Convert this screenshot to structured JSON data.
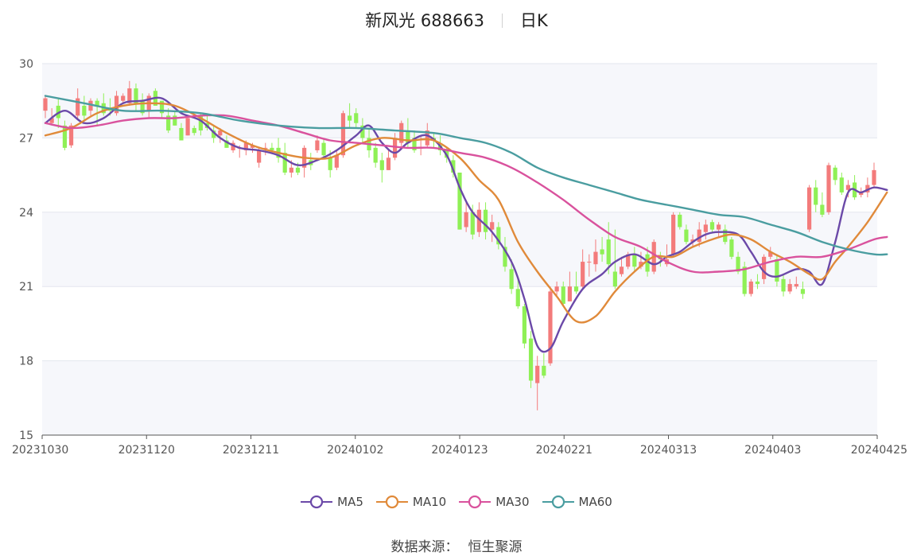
{
  "header": {
    "name": "新风光 688663",
    "period": "日K"
  },
  "source": {
    "label": "数据来源：",
    "value": "恒生聚源"
  },
  "chart_data": {
    "type": "candlestick",
    "ylim": [
      15,
      30
    ],
    "y_ticks": [
      "15",
      "18",
      "21",
      "24",
      "27",
      "30"
    ],
    "x_ticks": [
      "20231030",
      "20231120",
      "20231211",
      "20240102",
      "20240123",
      "20240221",
      "20240313",
      "20240403",
      "20240425"
    ],
    "up_color": "#f37b7b",
    "down_color": "#8ff056",
    "candles": [
      [
        28.1,
        28.6,
        27.8,
        28.7
      ],
      [
        27.6,
        27.8,
        27.5,
        28.2
      ],
      [
        28.3,
        27.8,
        27.4,
        28.6
      ],
      [
        27.5,
        26.6,
        26.5,
        27.7
      ],
      [
        26.7,
        27.5,
        26.6,
        27.6
      ],
      [
        27.9,
        28.6,
        27.8,
        29.0
      ],
      [
        28.3,
        27.9,
        27.7,
        28.7
      ],
      [
        28.1,
        28.5,
        27.9,
        28.6
      ],
      [
        28.5,
        28.3,
        27.5,
        28.6
      ],
      [
        28.4,
        28.0,
        27.9,
        28.8
      ],
      [
        28.2,
        28.1,
        27.9,
        28.6
      ],
      [
        28.0,
        28.7,
        27.9,
        28.9
      ],
      [
        28.5,
        28.7,
        28.4,
        28.8
      ],
      [
        28.4,
        29.0,
        28.3,
        29.3
      ],
      [
        29.0,
        28.4,
        28.1,
        29.2
      ],
      [
        28.5,
        28.0,
        27.9,
        28.8
      ],
      [
        28.1,
        28.7,
        27.8,
        28.8
      ],
      [
        28.9,
        28.3,
        28.3,
        29.0
      ],
      [
        28.5,
        28.0,
        27.8,
        28.5
      ],
      [
        27.9,
        27.3,
        27.2,
        28.2
      ],
      [
        27.9,
        27.5,
        27.5,
        28.1
      ],
      [
        27.4,
        26.9,
        26.9,
        27.6
      ],
      [
        27.1,
        27.8,
        27.1,
        27.9
      ],
      [
        27.4,
        27.2,
        27.1,
        27.5
      ],
      [
        27.9,
        27.3,
        27.1,
        28.0
      ],
      [
        27.6,
        27.4,
        27.3,
        27.9
      ],
      [
        27.3,
        27.0,
        26.8,
        27.5
      ],
      [
        27.1,
        27.3,
        26.8,
        27.4
      ],
      [
        26.9,
        26.6,
        26.6,
        27.1
      ],
      [
        26.5,
        26.8,
        26.4,
        26.9
      ],
      [
        26.6,
        26.6,
        26.2,
        26.7
      ],
      [
        26.5,
        26.8,
        26.3,
        26.9
      ],
      [
        26.6,
        26.7,
        26.4,
        26.8
      ],
      [
        26.0,
        26.5,
        25.8,
        26.6
      ],
      [
        26.6,
        26.6,
        26.3,
        26.8
      ],
      [
        26.6,
        26.5,
        26.4,
        26.8
      ],
      [
        26.6,
        26.2,
        26.0,
        27.0
      ],
      [
        26.4,
        25.6,
        25.5,
        26.8
      ],
      [
        25.6,
        25.8,
        25.4,
        26.1
      ],
      [
        25.8,
        25.6,
        25.5,
        26.0
      ],
      [
        25.8,
        26.6,
        25.4,
        26.7
      ],
      [
        26.1,
        25.9,
        25.7,
        26.4
      ],
      [
        26.5,
        26.9,
        26.4,
        27.1
      ],
      [
        26.8,
        26.3,
        26.2,
        27.0
      ],
      [
        26.2,
        25.7,
        25.4,
        26.5
      ],
      [
        25.8,
        26.3,
        25.7,
        26.5
      ],
      [
        26.3,
        28.0,
        26.2,
        28.1
      ],
      [
        27.9,
        27.7,
        27.4,
        28.4
      ],
      [
        28.0,
        27.6,
        27.4,
        28.2
      ],
      [
        27.5,
        27.0,
        26.8,
        27.8
      ],
      [
        27.0,
        26.5,
        26.2,
        27.4
      ],
      [
        26.6,
        26.0,
        25.8,
        26.8
      ],
      [
        26.1,
        25.7,
        25.2,
        26.4
      ],
      [
        25.7,
        26.2,
        25.7,
        26.5
      ],
      [
        26.2,
        27.0,
        26.1,
        27.2
      ],
      [
        26.8,
        27.6,
        26.6,
        27.7
      ],
      [
        27.3,
        26.8,
        26.6,
        27.8
      ],
      [
        27.0,
        26.5,
        26.4,
        27.3
      ],
      [
        26.6,
        26.6,
        26.3,
        27.1
      ],
      [
        26.7,
        27.3,
        26.6,
        27.6
      ],
      [
        27.0,
        26.9,
        26.6,
        27.2
      ],
      [
        26.7,
        26.5,
        26.3,
        27.1
      ],
      [
        26.5,
        26.2,
        26.0,
        26.6
      ],
      [
        26.1,
        25.6,
        25.4,
        26.3
      ],
      [
        25.6,
        23.3,
        23.3,
        25.6
      ],
      [
        23.4,
        24.0,
        23.2,
        24.5
      ],
      [
        24.0,
        23.1,
        22.9,
        24.3
      ],
      [
        23.2,
        24.1,
        23.0,
        24.4
      ],
      [
        24.1,
        23.2,
        22.9,
        24.4
      ],
      [
        23.3,
        23.6,
        22.8,
        23.9
      ],
      [
        23.4,
        22.7,
        22.5,
        23.6
      ],
      [
        22.6,
        21.8,
        21.6,
        23.0
      ],
      [
        21.7,
        20.9,
        20.7,
        22.1
      ],
      [
        20.9,
        20.2,
        20.1,
        21.4
      ],
      [
        20.2,
        18.7,
        18.5,
        20.3
      ],
      [
        18.9,
        17.2,
        16.9,
        19.2
      ],
      [
        17.1,
        17.8,
        16.0,
        18.2
      ],
      [
        17.8,
        17.4,
        17.3,
        18.3
      ],
      [
        17.9,
        20.8,
        17.8,
        21.0
      ],
      [
        20.8,
        21.0,
        20.6,
        21.2
      ],
      [
        21.0,
        20.3,
        20.2,
        21.2
      ],
      [
        20.4,
        21.0,
        20.4,
        21.6
      ],
      [
        21.0,
        20.8,
        20.7,
        21.6
      ],
      [
        21.0,
        22.0,
        20.9,
        22.5
      ],
      [
        22.0,
        22.0,
        21.4,
        22.3
      ],
      [
        21.9,
        22.4,
        21.6,
        22.9
      ],
      [
        22.5,
        22.3,
        22.0,
        23.0
      ],
      [
        22.9,
        21.9,
        21.5,
        23.6
      ],
      [
        21.6,
        21.0,
        20.9,
        23.3
      ],
      [
        21.5,
        21.8,
        21.4,
        22.2
      ],
      [
        21.8,
        22.3,
        21.7,
        22.4
      ],
      [
        22.3,
        21.8,
        21.6,
        22.6
      ],
      [
        21.8,
        22.0,
        21.7,
        22.4
      ],
      [
        22.3,
        21.6,
        21.4,
        22.6
      ],
      [
        21.6,
        22.8,
        21.5,
        22.9
      ],
      [
        22.2,
        22.1,
        21.8,
        22.4
      ],
      [
        21.9,
        22.1,
        21.8,
        22.7
      ],
      [
        22.3,
        23.9,
        22.2,
        24.0
      ],
      [
        23.9,
        23.4,
        23.3,
        24.0
      ],
      [
        23.3,
        22.8,
        22.7,
        23.5
      ],
      [
        22.8,
        22.9,
        22.6,
        23.1
      ],
      [
        22.8,
        23.3,
        22.6,
        23.6
      ],
      [
        23.2,
        23.5,
        22.9,
        23.7
      ],
      [
        23.6,
        23.3,
        23.2,
        23.7
      ],
      [
        23.3,
        23.5,
        23.0,
        23.6
      ],
      [
        23.3,
        22.8,
        22.7,
        23.5
      ],
      [
        22.9,
        22.2,
        22.1,
        23.0
      ],
      [
        22.2,
        21.6,
        21.5,
        22.4
      ],
      [
        21.8,
        20.7,
        20.6,
        22.0
      ],
      [
        20.7,
        21.2,
        20.6,
        21.3
      ],
      [
        21.2,
        21.1,
        20.9,
        21.5
      ],
      [
        21.3,
        22.2,
        21.1,
        22.3
      ],
      [
        22.2,
        22.4,
        22.1,
        22.6
      ],
      [
        22.1,
        21.2,
        21.0,
        22.3
      ],
      [
        21.3,
        20.8,
        20.6,
        21.5
      ],
      [
        20.8,
        21.1,
        20.7,
        21.3
      ],
      [
        21.0,
        21.1,
        20.9,
        21.4
      ],
      [
        20.9,
        20.7,
        20.5,
        21.2
      ],
      [
        23.3,
        25.0,
        23.2,
        25.1
      ],
      [
        25.0,
        24.3,
        24.0,
        25.3
      ],
      [
        24.3,
        23.9,
        23.8,
        24.8
      ],
      [
        24.0,
        25.9,
        23.9,
        26.0
      ],
      [
        25.8,
        25.3,
        25.1,
        25.9
      ],
      [
        25.4,
        24.8,
        24.7,
        25.6
      ],
      [
        24.9,
        25.1,
        24.6,
        25.3
      ],
      [
        25.2,
        24.6,
        24.5,
        25.5
      ],
      [
        24.7,
        24.8,
        24.6,
        25.0
      ],
      [
        24.8,
        25.1,
        24.6,
        25.4
      ],
      [
        25.1,
        25.7,
        25.0,
        26.0
      ]
    ],
    "series": [
      {
        "name": "MA5",
        "color": "#6b49a8",
        "points": [
          [
            0,
            27.6
          ],
          [
            3,
            28.1
          ],
          [
            6,
            27.6
          ],
          [
            9,
            27.8
          ],
          [
            12,
            28.4
          ],
          [
            15,
            28.5
          ],
          [
            18,
            28.6
          ],
          [
            21,
            28.0
          ],
          [
            24,
            27.7
          ],
          [
            27,
            27.0
          ],
          [
            30,
            26.6
          ],
          [
            33,
            26.5
          ],
          [
            36,
            26.3
          ],
          [
            39,
            25.9
          ],
          [
            42,
            26.1
          ],
          [
            45,
            26.5
          ],
          [
            48,
            27.1
          ],
          [
            50,
            27.5
          ],
          [
            52,
            26.8
          ],
          [
            54,
            26.4
          ],
          [
            56,
            26.8
          ],
          [
            59,
            27.1
          ],
          [
            62,
            26.3
          ],
          [
            64,
            25.0
          ],
          [
            66,
            24.0
          ],
          [
            69,
            23.2
          ],
          [
            72,
            22.0
          ],
          [
            74,
            20.5
          ],
          [
            76,
            18.6
          ],
          [
            78,
            18.5
          ],
          [
            80,
            19.6
          ],
          [
            83,
            20.9
          ],
          [
            86,
            21.5
          ],
          [
            88,
            22.0
          ],
          [
            91,
            22.3
          ],
          [
            94,
            21.9
          ],
          [
            96,
            22.2
          ],
          [
            98,
            22.4
          ],
          [
            100,
            22.8
          ],
          [
            102,
            23.1
          ],
          [
            104,
            23.2
          ],
          [
            107,
            23.1
          ],
          [
            109,
            22.4
          ],
          [
            111,
            21.6
          ],
          [
            113,
            21.4
          ],
          [
            116,
            21.7
          ],
          [
            118,
            21.6
          ],
          [
            120,
            21.1
          ],
          [
            122,
            22.8
          ],
          [
            124,
            24.8
          ],
          [
            126,
            24.8
          ],
          [
            128,
            25.0
          ],
          [
            130,
            24.9
          ]
        ]
      },
      {
        "name": "MA10",
        "color": "#e08a3a",
        "points": [
          [
            0,
            27.1
          ],
          [
            4,
            27.4
          ],
          [
            8,
            28.0
          ],
          [
            12,
            28.3
          ],
          [
            16,
            28.4
          ],
          [
            20,
            28.3
          ],
          [
            24,
            27.8
          ],
          [
            28,
            27.2
          ],
          [
            32,
            26.7
          ],
          [
            36,
            26.4
          ],
          [
            40,
            26.2
          ],
          [
            44,
            26.2
          ],
          [
            48,
            26.7
          ],
          [
            52,
            27.0
          ],
          [
            56,
            26.9
          ],
          [
            60,
            26.9
          ],
          [
            64,
            26.2
          ],
          [
            67,
            25.3
          ],
          [
            70,
            24.5
          ],
          [
            73,
            22.8
          ],
          [
            76,
            21.6
          ],
          [
            79,
            20.6
          ],
          [
            82,
            19.6
          ],
          [
            85,
            19.8
          ],
          [
            88,
            20.8
          ],
          [
            91,
            21.6
          ],
          [
            94,
            22.2
          ],
          [
            97,
            22.2
          ],
          [
            100,
            22.6
          ],
          [
            103,
            22.9
          ],
          [
            106,
            23.1
          ],
          [
            109,
            22.9
          ],
          [
            112,
            22.4
          ],
          [
            115,
            22.0
          ],
          [
            118,
            21.5
          ],
          [
            120,
            21.3
          ],
          [
            122,
            22.0
          ],
          [
            124,
            22.6
          ],
          [
            127,
            23.6
          ],
          [
            130,
            24.8
          ]
        ]
      },
      {
        "name": "MA30",
        "color": "#d9529d",
        "points": [
          [
            0,
            27.6
          ],
          [
            4,
            27.4
          ],
          [
            8,
            27.5
          ],
          [
            12,
            27.7
          ],
          [
            16,
            27.8
          ],
          [
            20,
            27.8
          ],
          [
            24,
            27.9
          ],
          [
            28,
            27.9
          ],
          [
            32,
            27.7
          ],
          [
            36,
            27.5
          ],
          [
            40,
            27.2
          ],
          [
            44,
            26.9
          ],
          [
            48,
            26.8
          ],
          [
            52,
            26.7
          ],
          [
            56,
            26.6
          ],
          [
            60,
            26.6
          ],
          [
            64,
            26.4
          ],
          [
            68,
            26.2
          ],
          [
            72,
            25.8
          ],
          [
            76,
            25.2
          ],
          [
            80,
            24.5
          ],
          [
            84,
            23.7
          ],
          [
            88,
            23.0
          ],
          [
            92,
            22.6
          ],
          [
            96,
            22.0
          ],
          [
            100,
            21.6
          ],
          [
            104,
            21.6
          ],
          [
            108,
            21.7
          ],
          [
            112,
            22.0
          ],
          [
            116,
            22.2
          ],
          [
            120,
            22.2
          ],
          [
            124,
            22.5
          ],
          [
            128,
            22.9
          ],
          [
            130,
            23.0
          ]
        ]
      },
      {
        "name": "MA60",
        "color": "#4a9da0",
        "points": [
          [
            0,
            28.7
          ],
          [
            6,
            28.4
          ],
          [
            12,
            28.1
          ],
          [
            18,
            28.1
          ],
          [
            24,
            28.0
          ],
          [
            30,
            27.7
          ],
          [
            36,
            27.5
          ],
          [
            42,
            27.4
          ],
          [
            48,
            27.4
          ],
          [
            54,
            27.3
          ],
          [
            60,
            27.2
          ],
          [
            64,
            27.0
          ],
          [
            68,
            26.8
          ],
          [
            72,
            26.4
          ],
          [
            76,
            25.8
          ],
          [
            80,
            25.4
          ],
          [
            84,
            25.1
          ],
          [
            88,
            24.8
          ],
          [
            92,
            24.5
          ],
          [
            96,
            24.3
          ],
          [
            100,
            24.1
          ],
          [
            104,
            23.9
          ],
          [
            108,
            23.8
          ],
          [
            112,
            23.5
          ],
          [
            116,
            23.2
          ],
          [
            120,
            22.8
          ],
          [
            124,
            22.5
          ],
          [
            128,
            22.3
          ],
          [
            130,
            22.3
          ]
        ]
      }
    ]
  }
}
